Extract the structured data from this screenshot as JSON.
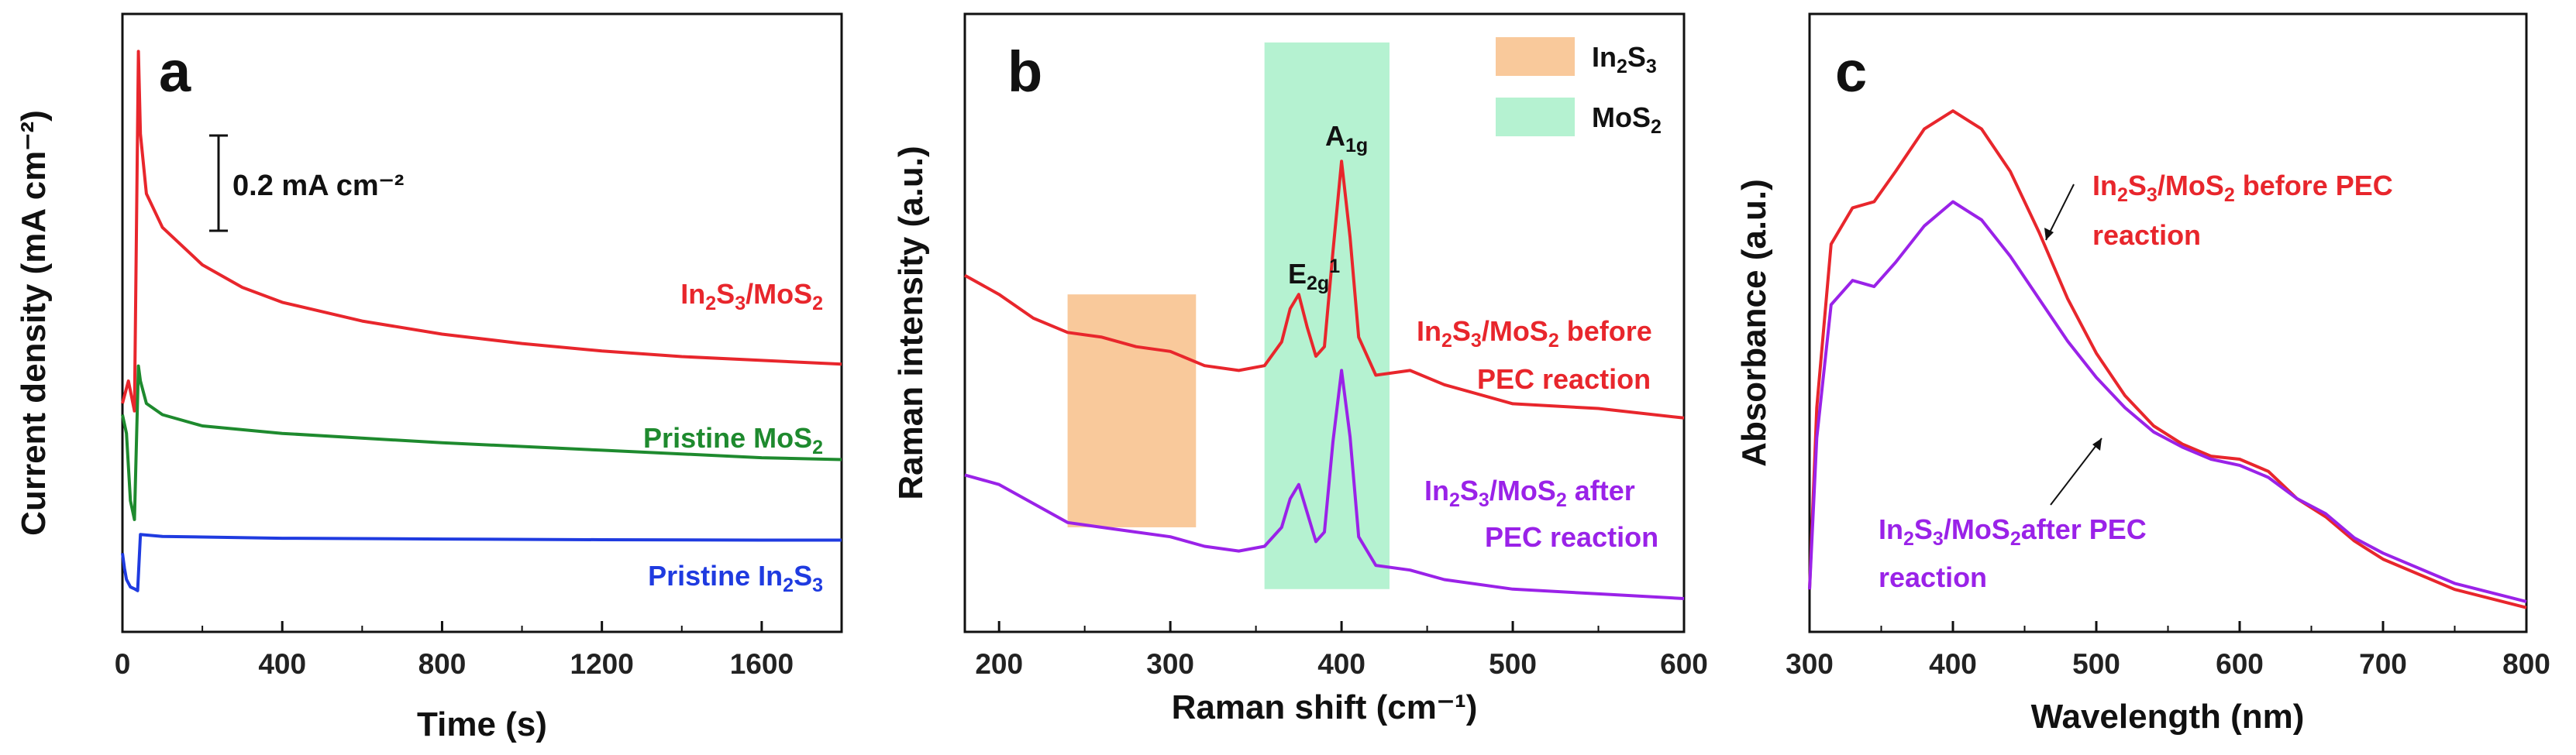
{
  "chart_data": [
    {
      "type": "line",
      "panel": "a",
      "xlabel": "Time (s)",
      "ylabel": "Current density (mA cm⁻²)",
      "xlim": [
        0,
        1800
      ],
      "x_ticks": [
        "0",
        "400",
        "800",
        "1200",
        "1600"
      ],
      "scale_bar": "0.2 mA cm⁻²",
      "series": [
        {
          "name": "In2S3/MoS2",
          "color": "#e8262c",
          "label_parts": [
            [
              "In",
              ""
            ],
            [
              "2",
              "sub"
            ],
            [
              "S",
              ""
            ],
            [
              "3",
              "sub"
            ],
            [
              "/MoS",
              ""
            ],
            [
              "2",
              "sub"
            ]
          ],
          "x": [
            0,
            15,
            30,
            40,
            45,
            60,
            100,
            200,
            300,
            400,
            600,
            800,
            1000,
            1200,
            1400,
            1600,
            1800
          ],
          "y": [
            0.56,
            0.62,
            0.54,
            1.5,
            1.28,
            1.12,
            1.03,
            0.93,
            0.87,
            0.83,
            0.78,
            0.745,
            0.72,
            0.7,
            0.685,
            0.675,
            0.665
          ]
        },
        {
          "name": "Pristine MoS2",
          "color": "#1e8a2e",
          "label_parts": [
            [
              "Pristine MoS",
              ""
            ],
            [
              "2",
              "sub"
            ]
          ],
          "x": [
            0,
            10,
            20,
            30,
            40,
            45,
            60,
            100,
            200,
            400,
            800,
            1200,
            1600,
            1800
          ],
          "y": [
            0.53,
            0.48,
            0.3,
            0.25,
            0.66,
            0.62,
            0.56,
            0.53,
            0.5,
            0.48,
            0.455,
            0.435,
            0.415,
            0.41
          ]
        },
        {
          "name": "Pristine In2S3",
          "color": "#1f3be0",
          "label_parts": [
            [
              "Pristine In",
              ""
            ],
            [
              "2",
              "sub"
            ],
            [
              "S",
              ""
            ],
            [
              "3",
              "sub"
            ]
          ],
          "x": [
            0,
            5,
            10,
            20,
            30,
            38,
            45,
            100,
            400,
            800,
            1200,
            1600,
            1800
          ],
          "y": [
            0.16,
            0.12,
            0.09,
            0.07,
            0.065,
            0.06,
            0.21,
            0.205,
            0.2,
            0.198,
            0.196,
            0.195,
            0.195
          ]
        }
      ]
    },
    {
      "type": "line",
      "panel": "b",
      "xlabel": "Raman shift (cm⁻¹)",
      "ylabel": "Raman intensity (a.u.)",
      "xlim": [
        180,
        600
      ],
      "x_ticks": [
        "200",
        "300",
        "400",
        "500",
        "600"
      ],
      "legend": [
        {
          "label": "In2S3",
          "color": "#f9c99b",
          "label_parts": [
            [
              "In",
              ""
            ],
            [
              "2",
              "sub"
            ],
            [
              "S",
              ""
            ],
            [
              "3",
              "sub"
            ]
          ]
        },
        {
          "label": "MoS2",
          "color": "#b5f2d1",
          "label_parts": [
            [
              "MoS",
              ""
            ],
            [
              "2",
              "sub"
            ]
          ]
        }
      ],
      "shaded_regions": [
        {
          "name": "In2S3",
          "x_range": [
            240,
            315
          ],
          "color": "#f9c99b"
        },
        {
          "name": "MoS2",
          "x_range": [
            355,
            428
          ],
          "color": "#b5f2d1"
        }
      ],
      "peak_labels": [
        {
          "name": "E2g1",
          "x": 378,
          "label_parts": [
            [
              "E",
              ""
            ],
            [
              "2g",
              "sub"
            ],
            [
              "1",
              "sup"
            ]
          ]
        },
        {
          "name": "A1g",
          "x": 405,
          "label_parts": [
            [
              "A",
              ""
            ],
            [
              "1g",
              "sub"
            ]
          ]
        }
      ],
      "series": [
        {
          "name": "In2S3/MoS2 before PEC reaction",
          "color": "#e8262c",
          "label_line1": [
            [
              "In",
              ""
            ],
            [
              "2",
              "sub"
            ],
            [
              "S",
              ""
            ],
            [
              "3",
              "sub"
            ],
            [
              "/MoS",
              ""
            ],
            [
              "2",
              "sub"
            ],
            [
              " before",
              ""
            ]
          ],
          "label_line2": [
            [
              "PEC reaction",
              ""
            ]
          ],
          "x": [
            180,
            200,
            220,
            240,
            260,
            280,
            300,
            320,
            340,
            355,
            365,
            370,
            375,
            380,
            385,
            390,
            395,
            400,
            405,
            410,
            420,
            440,
            460,
            500,
            550,
            600
          ],
          "y": [
            0.7,
            0.66,
            0.61,
            0.58,
            0.57,
            0.55,
            0.54,
            0.51,
            0.5,
            0.51,
            0.56,
            0.63,
            0.66,
            0.59,
            0.53,
            0.55,
            0.75,
            0.94,
            0.78,
            0.57,
            0.49,
            0.5,
            0.47,
            0.43,
            0.42,
            0.4
          ]
        },
        {
          "name": "In2S3/MoS2 after PEC reaction",
          "color": "#9a22e8",
          "label_line1": [
            [
              "In",
              ""
            ],
            [
              "2",
              "sub"
            ],
            [
              "S",
              ""
            ],
            [
              "3",
              "sub"
            ],
            [
              "/MoS",
              ""
            ],
            [
              "2",
              "sub"
            ],
            [
              " after",
              ""
            ]
          ],
          "label_line2": [
            [
              "PEC reaction",
              ""
            ]
          ],
          "x": [
            180,
            200,
            220,
            240,
            260,
            280,
            300,
            320,
            340,
            355,
            365,
            370,
            375,
            380,
            385,
            390,
            395,
            400,
            405,
            410,
            420,
            440,
            460,
            500,
            550,
            600
          ],
          "y": [
            0.28,
            0.26,
            0.22,
            0.18,
            0.17,
            0.16,
            0.15,
            0.13,
            0.12,
            0.13,
            0.17,
            0.23,
            0.26,
            0.2,
            0.14,
            0.16,
            0.35,
            0.5,
            0.36,
            0.15,
            0.09,
            0.08,
            0.06,
            0.04,
            0.03,
            0.02
          ]
        }
      ]
    },
    {
      "type": "line",
      "panel": "c",
      "xlabel": "Wavelength (nm)",
      "ylabel": "Absorbance (a.u.)",
      "xlim": [
        300,
        800
      ],
      "x_ticks": [
        "300",
        "400",
        "500",
        "600",
        "700",
        "800"
      ],
      "series": [
        {
          "name": "In2S3/MoS2 before PEC reaction",
          "color": "#e8262c",
          "label_line1": [
            [
              "In",
              ""
            ],
            [
              "2",
              "sub"
            ],
            [
              "S",
              ""
            ],
            [
              "3",
              "sub"
            ],
            [
              "/MoS",
              ""
            ],
            [
              "2",
              "sub"
            ],
            [
              " before PEC",
              ""
            ]
          ],
          "label_line2": [
            [
              "reaction",
              ""
            ]
          ],
          "x": [
            300,
            305,
            315,
            330,
            345,
            360,
            380,
            400,
            420,
            440,
            460,
            480,
            500,
            520,
            540,
            560,
            580,
            600,
            620,
            640,
            660,
            680,
            700,
            750,
            800
          ],
          "y": [
            0.05,
            0.35,
            0.62,
            0.68,
            0.69,
            0.74,
            0.81,
            0.84,
            0.81,
            0.74,
            0.64,
            0.53,
            0.44,
            0.37,
            0.32,
            0.29,
            0.27,
            0.265,
            0.245,
            0.2,
            0.17,
            0.13,
            0.1,
            0.05,
            0.02
          ]
        },
        {
          "name": "In2S3/MoS2 after PEC reaction",
          "color": "#9a22e8",
          "label_line1": [
            [
              "In",
              ""
            ],
            [
              "2",
              "sub"
            ],
            [
              "S",
              ""
            ],
            [
              "3",
              "sub"
            ],
            [
              "/MoS",
              ""
            ],
            [
              "2",
              "sub"
            ],
            [
              "after PEC",
              ""
            ]
          ],
          "label_line2": [
            [
              "reaction",
              ""
            ]
          ],
          "x": [
            300,
            305,
            315,
            330,
            345,
            360,
            380,
            400,
            420,
            440,
            460,
            480,
            500,
            520,
            540,
            560,
            580,
            600,
            620,
            640,
            660,
            680,
            700,
            750,
            800
          ],
          "y": [
            0.05,
            0.3,
            0.52,
            0.56,
            0.55,
            0.59,
            0.65,
            0.69,
            0.66,
            0.6,
            0.53,
            0.46,
            0.4,
            0.35,
            0.31,
            0.285,
            0.265,
            0.255,
            0.235,
            0.2,
            0.175,
            0.135,
            0.11,
            0.06,
            0.03
          ]
        }
      ]
    }
  ]
}
